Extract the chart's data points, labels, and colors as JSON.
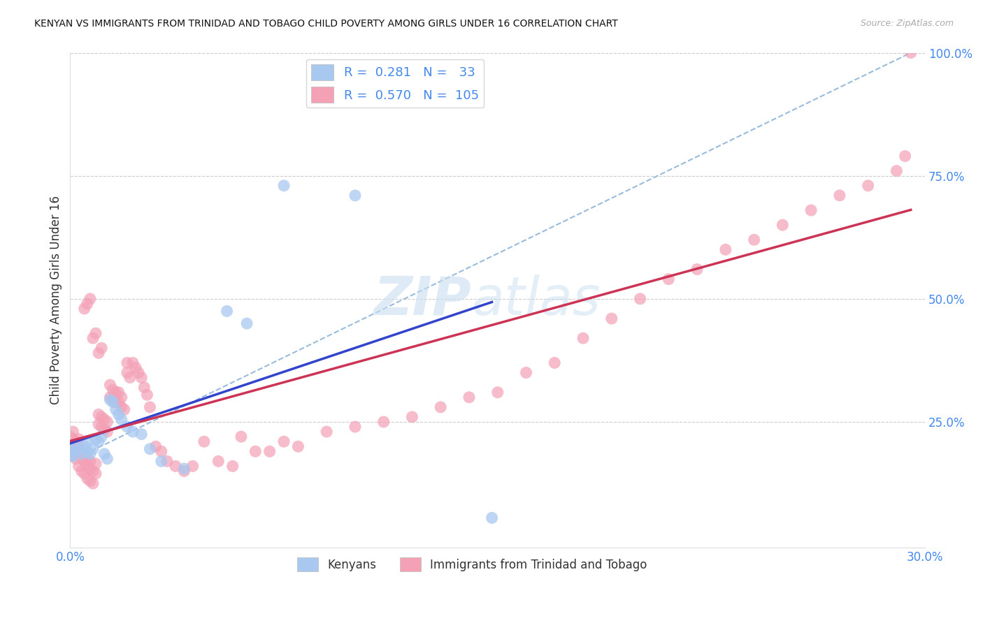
{
  "title": "KENYAN VS IMMIGRANTS FROM TRINIDAD AND TOBAGO CHILD POVERTY AMONG GIRLS UNDER 16 CORRELATION CHART",
  "source": "Source: ZipAtlas.com",
  "ylabel": "Child Poverty Among Girls Under 16",
  "xlim": [
    0.0,
    0.3
  ],
  "ylim": [
    -0.005,
    1.0
  ],
  "background_color": "#ffffff",
  "grid_color": "#cccccc",
  "watermark_zip": "ZIP",
  "watermark_atlas": "atlas",
  "legend_R1": "0.281",
  "legend_N1": "33",
  "legend_R2": "0.570",
  "legend_N2": "105",
  "kenyan_color": "#a8c8f0",
  "tt_color": "#f4a0b5",
  "kenyan_line_color": "#3344cc",
  "tt_line_color": "#cc3355",
  "dash_line_color": "#99bbdd",
  "tick_color": "#4488ee",
  "label_color": "#333333",
  "source_color": "#aaaaaa",
  "kenyan_x": [
    0.0,
    0.0,
    0.001,
    0.001,
    0.002,
    0.003,
    0.004,
    0.005,
    0.006,
    0.006,
    0.007,
    0.008,
    0.009,
    0.01,
    0.011,
    0.012,
    0.013,
    0.014,
    0.015,
    0.016,
    0.017,
    0.018,
    0.02,
    0.022,
    0.025,
    0.028,
    0.032,
    0.04,
    0.055,
    0.062,
    0.075,
    0.1,
    0.148
  ],
  "kenyan_y": [
    0.195,
    0.185,
    0.19,
    0.18,
    0.2,
    0.195,
    0.185,
    0.2,
    0.19,
    0.21,
    0.185,
    0.195,
    0.215,
    0.21,
    0.22,
    0.185,
    0.175,
    0.295,
    0.29,
    0.275,
    0.265,
    0.255,
    0.24,
    0.23,
    0.225,
    0.195,
    0.17,
    0.155,
    0.475,
    0.45,
    0.73,
    0.71,
    0.055
  ],
  "tt_x": [
    0.0,
    0.0,
    0.0,
    0.0,
    0.0,
    0.001,
    0.001,
    0.001,
    0.001,
    0.002,
    0.002,
    0.002,
    0.003,
    0.003,
    0.003,
    0.003,
    0.004,
    0.004,
    0.004,
    0.005,
    0.005,
    0.005,
    0.006,
    0.006,
    0.006,
    0.007,
    0.007,
    0.007,
    0.008,
    0.008,
    0.009,
    0.009,
    0.01,
    0.01,
    0.011,
    0.011,
    0.012,
    0.012,
    0.013,
    0.013,
    0.014,
    0.014,
    0.015,
    0.015,
    0.016,
    0.016,
    0.017,
    0.017,
    0.018,
    0.018,
    0.019,
    0.02,
    0.02,
    0.021,
    0.022,
    0.023,
    0.024,
    0.025,
    0.026,
    0.027,
    0.028,
    0.03,
    0.032,
    0.034,
    0.037,
    0.04,
    0.043,
    0.047,
    0.052,
    0.057,
    0.06,
    0.065,
    0.07,
    0.075,
    0.08,
    0.09,
    0.1,
    0.11,
    0.12,
    0.13,
    0.14,
    0.15,
    0.16,
    0.17,
    0.18,
    0.19,
    0.2,
    0.21,
    0.22,
    0.23,
    0.24,
    0.25,
    0.26,
    0.27,
    0.28,
    0.29,
    0.293,
    0.295,
    0.005,
    0.006,
    0.007,
    0.008,
    0.009,
    0.01,
    0.011
  ],
  "tt_y": [
    0.2,
    0.215,
    0.195,
    0.21,
    0.22,
    0.185,
    0.2,
    0.215,
    0.23,
    0.175,
    0.195,
    0.21,
    0.16,
    0.185,
    0.2,
    0.215,
    0.15,
    0.175,
    0.19,
    0.145,
    0.17,
    0.185,
    0.135,
    0.16,
    0.175,
    0.13,
    0.155,
    0.17,
    0.125,
    0.15,
    0.165,
    0.145,
    0.245,
    0.265,
    0.24,
    0.26,
    0.235,
    0.255,
    0.23,
    0.25,
    0.3,
    0.325,
    0.295,
    0.315,
    0.29,
    0.31,
    0.29,
    0.31,
    0.28,
    0.3,
    0.275,
    0.37,
    0.35,
    0.34,
    0.37,
    0.36,
    0.35,
    0.34,
    0.32,
    0.305,
    0.28,
    0.2,
    0.19,
    0.17,
    0.16,
    0.15,
    0.16,
    0.21,
    0.17,
    0.16,
    0.22,
    0.19,
    0.19,
    0.21,
    0.2,
    0.23,
    0.24,
    0.25,
    0.26,
    0.28,
    0.3,
    0.31,
    0.35,
    0.37,
    0.42,
    0.46,
    0.5,
    0.54,
    0.56,
    0.6,
    0.62,
    0.65,
    0.68,
    0.71,
    0.73,
    0.76,
    0.79,
    1.0,
    0.48,
    0.49,
    0.5,
    0.42,
    0.43,
    0.39,
    0.4
  ]
}
